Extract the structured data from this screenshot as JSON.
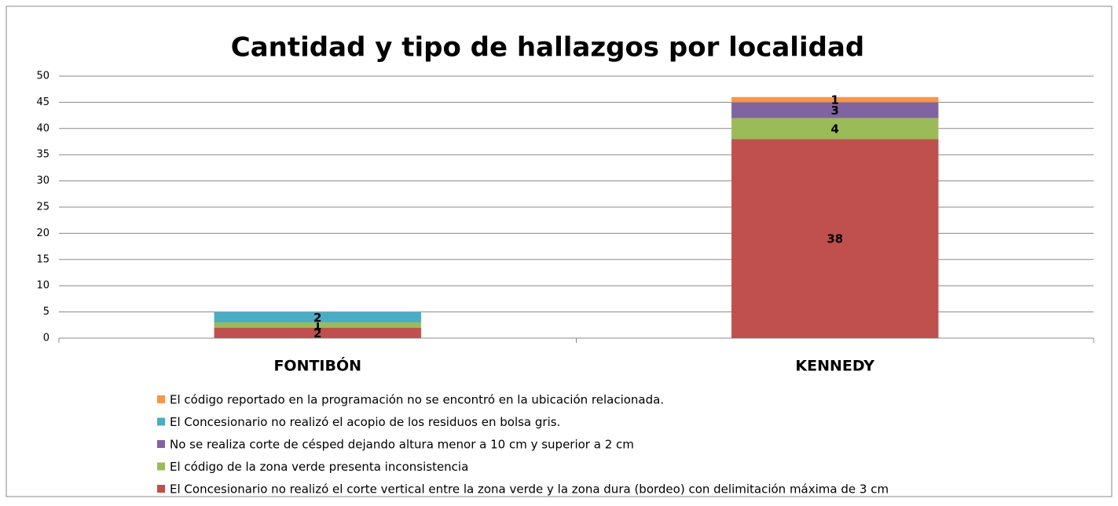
{
  "chart_data": {
    "type": "stacked_bar",
    "title": "Cantidad y tipo de hallazgos por localidad",
    "categories": [
      "FONTIBÓN",
      "KENNEDY"
    ],
    "series": [
      {
        "name": "El Concesionario no realizó el corte vertical entre la zona verde y la zona dura (bordeo) con delimitación máxima de 3 cm",
        "color": "#c0504d",
        "values": [
          2,
          38
        ]
      },
      {
        "name": "El código de la zona verde presenta inconsistencia",
        "color": "#9bbb59",
        "values": [
          1,
          4
        ]
      },
      {
        "name": "No se realiza corte de césped dejando altura menor a 10 cm y superior a 2 cm",
        "color": "#8064a2",
        "values": [
          null,
          3
        ]
      },
      {
        "name": "El Concesionario no realizó el acopio de los residuos en bolsa gris.",
        "color": "#4bacc6",
        "values": [
          2,
          null
        ]
      },
      {
        "name": "El código reportado en la programación no se encontró en la ubicación relacionada.",
        "color": "#f79646",
        "values": [
          null,
          1
        ]
      }
    ],
    "ylim": [
      0,
      50
    ],
    "yticks": [
      0,
      5,
      10,
      15,
      20,
      25,
      30,
      35,
      40,
      45,
      50
    ],
    "grid": true
  }
}
